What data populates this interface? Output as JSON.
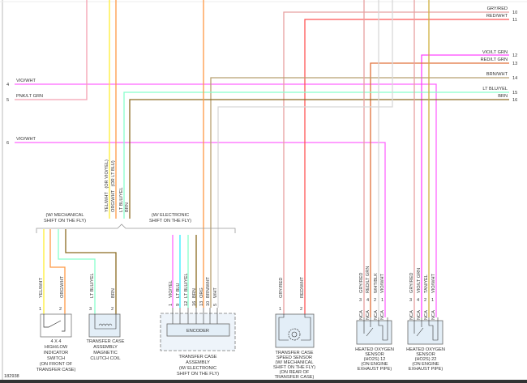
{
  "diagram_id": "182938",
  "left_connector": [
    {
      "pin": "4",
      "wire": "VIO/WHT"
    },
    {
      "pin": "5",
      "wire": "PNK/LT GRN"
    },
    {
      "pin": "6",
      "wire": "VIO/WHT"
    }
  ],
  "right_connector": [
    {
      "pin": "10",
      "wire": "GRY/RED"
    },
    {
      "pin": "11",
      "wire": "RED/WHT"
    },
    {
      "pin": "12",
      "wire": "VIO/LT GRN"
    },
    {
      "pin": "13",
      "wire": "RED/LT GRN"
    },
    {
      "pin": "14",
      "wire": "BRN/WHT"
    },
    {
      "pin": "15",
      "wire": "LT BLU/YEL"
    },
    {
      "pin": "16",
      "wire": "BRN"
    }
  ],
  "bundle_wires": [
    "YEL/WHT   (OR VIO/YEL)",
    "ORG/WHT   (OR LT BLU)",
    "LT BLU/YEL",
    "BRN"
  ],
  "variants": {
    "mechanical": [
      "(W/ MECHANICAL",
      "SHIFT ON THE FLY)"
    ],
    "electronic": [
      "(W/ ELECTRONIC",
      "SHIFT ON THE FLY)"
    ]
  },
  "switch_4x4": {
    "pins": [
      {
        "pin": "1",
        "wire": "YEL/WHT"
      },
      {
        "pin": "2",
        "wire": "ORG/WHT"
      }
    ],
    "label": [
      "4 X 4",
      "HIGH/LOW",
      "INDICATOR",
      "SWITCH",
      "(ON FRONT OF",
      "TRANSFER CASE)"
    ]
  },
  "clutch_coil": {
    "pins": [
      {
        "pin": "3",
        "wire": "LT BLU/YEL"
      },
      {
        "pin": "2",
        "wire": "BRN"
      }
    ],
    "label": [
      "TRANSFER CASE",
      "ASSEMBLY",
      "MAGNETIC",
      "CLUTCH COIL"
    ]
  },
  "transfer_case_assembly": {
    "inner": "ENCODER",
    "pins": [
      {
        "pin": "1",
        "wire": "VIO/YEL"
      },
      {
        "pin": "9",
        "wire": "LT BLU"
      },
      {
        "pin": "12",
        "wire": "LT BLU/YEL"
      },
      {
        "pin": "16",
        "wire": "BRN"
      },
      {
        "pin": "13",
        "wire": "ORG"
      },
      {
        "pin": "10",
        "wire": "BRN/WHT"
      },
      {
        "pin": "5",
        "wire": "WHT"
      }
    ],
    "label": [
      "TRANSFER CASE",
      "ASSEMBLY",
      "(W/ ELECTRONIC",
      "SHIFT ON THE FLY)"
    ]
  },
  "speed_sensor": {
    "pins": [
      {
        "pin": "1",
        "wire": "GRY/RED"
      },
      {
        "pin": "2",
        "wire": "RED/WHT"
      }
    ],
    "label": [
      "TRANSFER CASE",
      "SPEED SENSOR",
      "(W/ MECHANICAL",
      "SHIFT ON THE FLY)",
      "(ON REAR OF",
      "TRANSFER CASE)"
    ]
  },
  "ho2s_12": {
    "pins": [
      {
        "pin": "3",
        "wire": "GRY/RED",
        "tag": "NCA"
      },
      {
        "pin": "4",
        "wire": "RED/LT GRN",
        "tag": "NCA"
      },
      {
        "pin": "2",
        "wire": "WHT/BLK",
        "tag": "NCA"
      },
      {
        "pin": "1",
        "wire": "VIO/WHT",
        "tag": "NCA"
      }
    ],
    "label": [
      "HEATED OXYGEN",
      "SENSOR",
      "(HO2S) 12",
      "(ON ENGINE",
      "EXHAUST PIPE)"
    ]
  },
  "ho2s_22": {
    "pins": [
      {
        "pin": "3",
        "wire": "GRY/RED",
        "tag": "NCA"
      },
      {
        "pin": "4",
        "wire": "VIO/LT GRN",
        "tag": "NCA"
      },
      {
        "pin": "2",
        "wire": "TAN/YEL",
        "tag": "NCA"
      },
      {
        "pin": "1",
        "wire": "VIO/WHT",
        "tag": "NCA"
      }
    ],
    "label": [
      "HEATED OXYGEN",
      "SENSOR",
      "(HO2S) 22",
      "(ON ENGINE",
      "EXHAUST PIPE)"
    ]
  },
  "colors": {
    "vio_wht": "#ff66ff",
    "pnk_lt_grn": "#f4a0b0",
    "gry_red": "#e8a0a0",
    "red_wht": "#ff5555",
    "vio_lt_grn": "#ff44ff",
    "red_lt_grn": "#e0703a",
    "brn_wht": "#b8a070",
    "lt_blu_yel": "#88ffcc",
    "brn": "#8a6a20",
    "yel": "#ffee33",
    "org": "#ff9944",
    "lt_blu": "#33eeff",
    "wht": "#d8d8d8",
    "tan_yel": "#d0b040"
  }
}
